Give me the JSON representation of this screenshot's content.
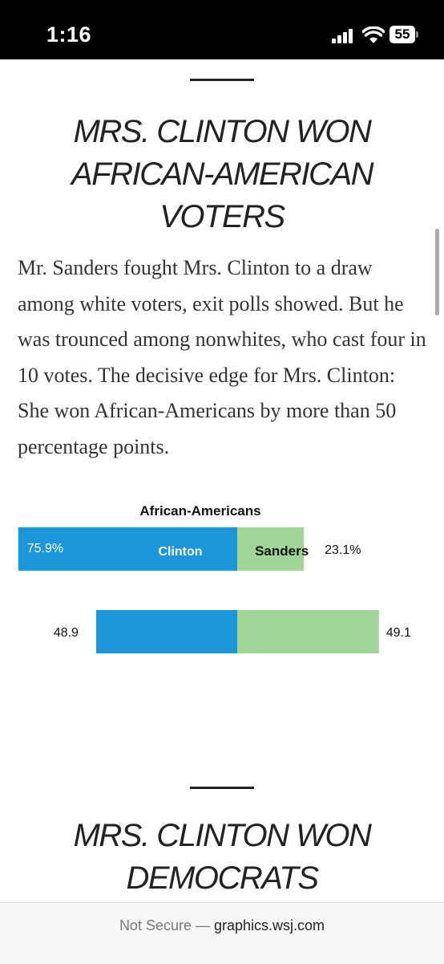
{
  "status_bar": {
    "time": "1:16",
    "battery": "55"
  },
  "sections": [
    {
      "headline": "MRS. CLINTON WON\nAFRICAN-AMERICAN\nVOTERS",
      "body": "Mr. Sanders fought Mrs. Clinton to a draw among white voters, exit polls showed. But he was trounced among nonwhites, who cast four in 10 votes. The decisive edge for Mrs. Clinton: She won African-Americans by more than 50 percentage points."
    },
    {
      "headline": "MRS. CLINTON WON\nDEMOCRATS"
    }
  ],
  "chart_data": {
    "type": "bar",
    "orientation": "horizontal-diverging",
    "title": "African-Americans",
    "series": [
      {
        "name": "Clinton",
        "color": "#1a96d9"
      },
      {
        "name": "Sanders",
        "color": "#9fd596"
      }
    ],
    "rows": [
      {
        "clinton": 75.9,
        "sanders": 23.1,
        "clinton_label": "75.9%",
        "sanders_label": "23.1%",
        "series_labels": true
      },
      {
        "clinton": 48.9,
        "sanders": 49.1,
        "clinton_label": "48.9",
        "sanders_label": "49.1",
        "series_labels": false
      }
    ]
  },
  "url_bar": {
    "security": "Not Secure —",
    "host": "graphics.wsj.com"
  }
}
